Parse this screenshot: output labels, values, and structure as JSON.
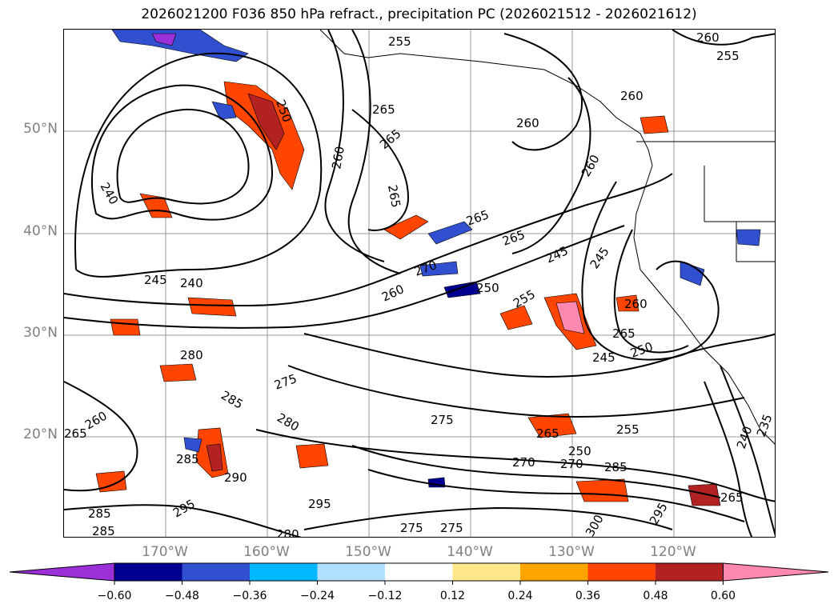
{
  "title": "2026021200 F036 850 hPa refract., precipitation PC (2026021512 - 2026021612)",
  "map": {
    "lat_labels": [
      "50°N",
      "40°N",
      "30°N",
      "20°N"
    ],
    "lon_labels": [
      "170°W",
      "160°W",
      "150°W",
      "140°W",
      "130°W",
      "120°W"
    ],
    "contour_labels": [
      "255",
      "260",
      "255",
      "250",
      "265",
      "260",
      "260",
      "265",
      "260",
      "260",
      "240",
      "265",
      "265",
      "265",
      "245",
      "245",
      "240",
      "270",
      "260",
      "250",
      "255",
      "260",
      "265",
      "245",
      "250",
      "245",
      "280",
      "275",
      "285",
      "280",
      "275",
      "260",
      "265",
      "285",
      "290",
      "295",
      "295",
      "255",
      "265",
      "270",
      "250",
      "285",
      "240",
      "235",
      "300",
      "295",
      "285",
      "280",
      "275",
      "285",
      "275",
      "265",
      "270"
    ]
  },
  "colorbar": {
    "tick_labels": [
      "−0.60",
      "−0.48",
      "−0.36",
      "−0.24",
      "−0.12",
      "0.12",
      "0.24",
      "0.36",
      "0.48",
      "0.60"
    ],
    "colors": [
      "#9b30d9",
      "#000090",
      "#3050d0",
      "#00b8ff",
      "#b0e0ff",
      "#ffffff",
      "#ffe88a",
      "#ffa500",
      "#ff4500",
      "#b22222",
      "#ff88b0"
    ]
  }
}
